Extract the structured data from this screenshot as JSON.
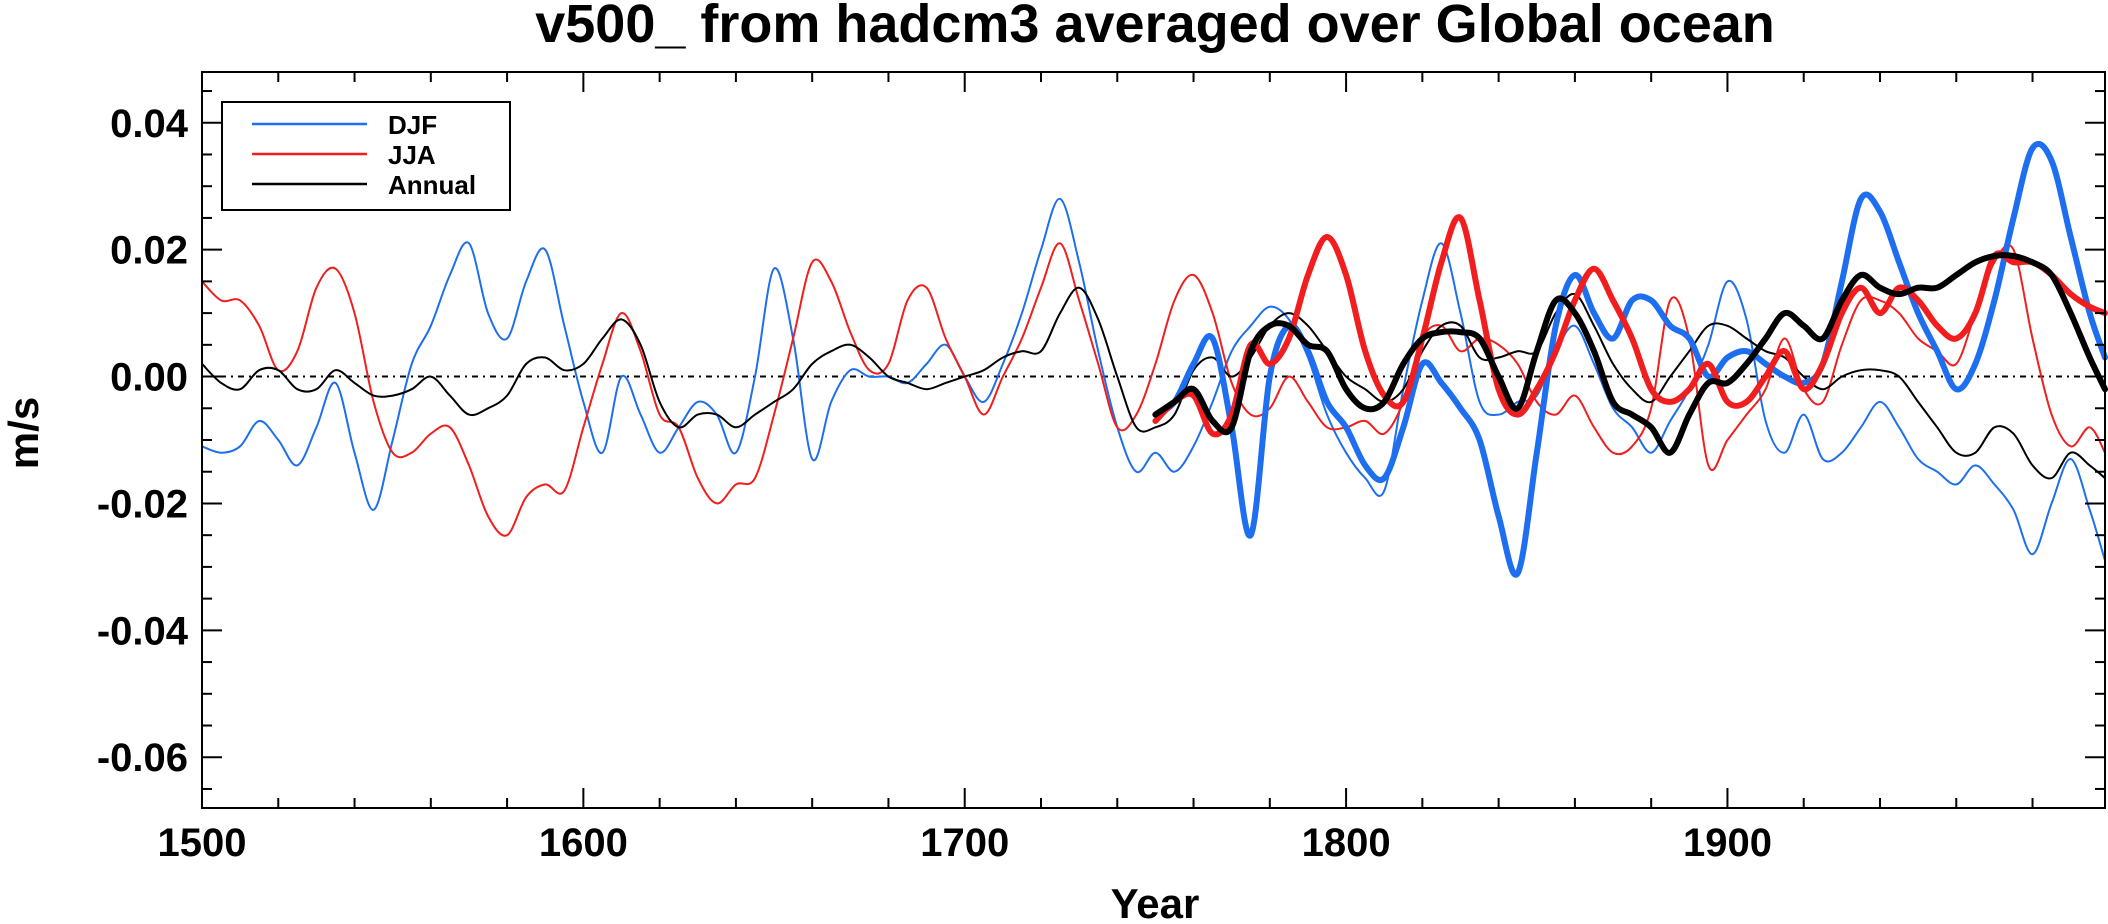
{
  "chart_data": {
    "type": "line",
    "title": "v500_ from hadcm3 averaged over Global ocean",
    "xlabel": "Year",
    "ylabel": "m/s",
    "xlim": [
      1500,
      1999
    ],
    "ylim": [
      -0.068,
      0.048
    ],
    "xticks": [
      1500,
      1600,
      1700,
      1800,
      1900
    ],
    "xtick_labels": [
      "1500",
      "1600",
      "1700",
      "1800",
      "1900"
    ],
    "yticks": [
      -0.06,
      -0.04,
      -0.02,
      0.0,
      0.02,
      0.04
    ],
    "ytick_labels": [
      "-0.06",
      "-0.04",
      "-0.02",
      "0.00",
      "0.02",
      "0.04"
    ],
    "zero_line": true,
    "legend_position": "top-left",
    "legend": [
      {
        "label": "DJF",
        "color": "#1E6EF0"
      },
      {
        "label": "JJA",
        "color": "#F01E1E"
      },
      {
        "label": "Annual",
        "color": "#000000"
      }
    ],
    "series": [
      {
        "name": "DJF",
        "color": "#1E6EF0",
        "width": "thin",
        "x": [
          1500,
          1505,
          1510,
          1515,
          1520,
          1525,
          1530,
          1535,
          1540,
          1545,
          1550,
          1555,
          1560,
          1565,
          1570,
          1575,
          1580,
          1585,
          1590,
          1595,
          1600,
          1605,
          1610,
          1615,
          1620,
          1625,
          1630,
          1635,
          1640,
          1645,
          1650,
          1655,
          1660,
          1665,
          1670,
          1675,
          1680,
          1685,
          1690,
          1695,
          1700,
          1705,
          1710,
          1715,
          1720,
          1725,
          1730,
          1735,
          1740,
          1745,
          1750,
          1755,
          1760,
          1765,
          1770,
          1775,
          1780,
          1785,
          1790,
          1795,
          1800,
          1805,
          1810,
          1815,
          1820,
          1825,
          1830,
          1835,
          1840,
          1845,
          1850,
          1855,
          1860,
          1865,
          1870,
          1875,
          1880,
          1885,
          1890,
          1895,
          1900,
          1905,
          1910,
          1915,
          1920,
          1925,
          1930,
          1935,
          1940,
          1945,
          1950,
          1955,
          1960,
          1965,
          1970,
          1975,
          1980,
          1985,
          1990,
          1995,
          1999
        ],
        "y": [
          -0.011,
          -0.012,
          -0.011,
          -0.007,
          -0.01,
          -0.014,
          -0.008,
          -0.001,
          -0.012,
          -0.021,
          -0.01,
          0.002,
          0.008,
          0.016,
          0.021,
          0.01,
          0.006,
          0.015,
          0.02,
          0.008,
          -0.004,
          -0.012,
          0.0,
          -0.006,
          -0.012,
          -0.008,
          -0.004,
          -0.006,
          -0.012,
          0.0,
          0.017,
          0.006,
          -0.013,
          -0.004,
          0.001,
          0.0,
          0.0,
          -0.001,
          0.002,
          0.005,
          0.0,
          -0.004,
          0.002,
          0.01,
          0.02,
          0.028,
          0.018,
          0.004,
          -0.008,
          -0.015,
          -0.012,
          -0.015,
          -0.011,
          -0.004,
          0.004,
          0.008,
          0.011,
          0.009,
          0.003,
          -0.006,
          -0.012,
          -0.016,
          -0.018,
          -0.002,
          0.012,
          0.021,
          0.01,
          -0.004,
          -0.006,
          -0.004,
          -0.003,
          0.004,
          0.008,
          0.002,
          -0.005,
          -0.008,
          -0.012,
          -0.007,
          -0.002,
          0.005,
          0.015,
          0.009,
          -0.007,
          -0.012,
          -0.006,
          -0.013,
          -0.012,
          -0.008,
          -0.004,
          -0.008,
          -0.013,
          -0.015,
          -0.017,
          -0.014,
          -0.017,
          -0.021,
          -0.028,
          -0.02,
          -0.013,
          -0.021,
          -0.029
        ]
      },
      {
        "name": "JJA",
        "color": "#F01E1E",
        "width": "thin",
        "x": [
          1500,
          1505,
          1510,
          1515,
          1520,
          1525,
          1530,
          1535,
          1540,
          1545,
          1550,
          1555,
          1560,
          1565,
          1570,
          1575,
          1580,
          1585,
          1590,
          1595,
          1600,
          1605,
          1610,
          1615,
          1620,
          1625,
          1630,
          1635,
          1640,
          1645,
          1650,
          1655,
          1660,
          1665,
          1670,
          1675,
          1680,
          1685,
          1690,
          1695,
          1700,
          1705,
          1710,
          1715,
          1720,
          1725,
          1730,
          1735,
          1740,
          1745,
          1750,
          1755,
          1760,
          1765,
          1770,
          1775,
          1780,
          1785,
          1790,
          1795,
          1800,
          1805,
          1810,
          1815,
          1820,
          1825,
          1830,
          1835,
          1840,
          1845,
          1850,
          1855,
          1860,
          1865,
          1870,
          1875,
          1880,
          1885,
          1890,
          1895,
          1900,
          1905,
          1910,
          1915,
          1920,
          1925,
          1930,
          1935,
          1940,
          1945,
          1950,
          1955,
          1960,
          1965,
          1970,
          1975,
          1980,
          1985,
          1990,
          1995,
          1999
        ],
        "y": [
          0.015,
          0.012,
          0.012,
          0.008,
          0.001,
          0.004,
          0.014,
          0.017,
          0.01,
          -0.004,
          -0.012,
          -0.012,
          -0.009,
          -0.008,
          -0.014,
          -0.022,
          -0.025,
          -0.019,
          -0.017,
          -0.018,
          -0.008,
          0.002,
          0.01,
          0.004,
          -0.006,
          -0.008,
          -0.016,
          -0.02,
          -0.017,
          -0.016,
          -0.006,
          0.006,
          0.018,
          0.015,
          0.007,
          0.001,
          0.002,
          0.012,
          0.014,
          0.006,
          0.0,
          -0.006,
          0.0,
          0.006,
          0.014,
          0.021,
          0.012,
          0.002,
          -0.008,
          -0.006,
          0.002,
          0.012,
          0.016,
          0.01,
          -0.001,
          -0.006,
          -0.005,
          0.0,
          -0.004,
          -0.008,
          -0.008,
          -0.007,
          -0.009,
          -0.004,
          0.006,
          0.008,
          0.004,
          0.006,
          0.005,
          0.002,
          -0.004,
          -0.006,
          -0.003,
          -0.008,
          -0.012,
          -0.011,
          -0.005,
          0.012,
          0.006,
          -0.014,
          -0.01,
          -0.006,
          -0.002,
          0.006,
          -0.002,
          -0.004,
          0.005,
          0.012,
          0.012,
          0.01,
          0.006,
          0.004,
          0.002,
          0.01,
          0.018,
          0.02,
          0.006,
          -0.006,
          -0.011,
          -0.008,
          -0.012
        ]
      },
      {
        "name": "Annual",
        "color": "#000000",
        "width": "thin",
        "x": [
          1500,
          1505,
          1510,
          1515,
          1520,
          1525,
          1530,
          1535,
          1540,
          1545,
          1550,
          1555,
          1560,
          1565,
          1570,
          1575,
          1580,
          1585,
          1590,
          1595,
          1600,
          1605,
          1610,
          1615,
          1620,
          1625,
          1630,
          1635,
          1640,
          1645,
          1650,
          1655,
          1660,
          1665,
          1670,
          1675,
          1680,
          1685,
          1690,
          1695,
          1700,
          1705,
          1710,
          1715,
          1720,
          1725,
          1730,
          1735,
          1740,
          1745,
          1750,
          1755,
          1760,
          1765,
          1770,
          1775,
          1780,
          1785,
          1790,
          1795,
          1800,
          1805,
          1810,
          1815,
          1820,
          1825,
          1830,
          1835,
          1840,
          1845,
          1850,
          1855,
          1860,
          1865,
          1870,
          1875,
          1880,
          1885,
          1890,
          1895,
          1900,
          1905,
          1910,
          1915,
          1920,
          1925,
          1930,
          1935,
          1940,
          1945,
          1950,
          1955,
          1960,
          1965,
          1970,
          1975,
          1980,
          1985,
          1990,
          1995,
          1999
        ],
        "y": [
          0.002,
          -0.001,
          -0.002,
          0.001,
          0.001,
          -0.002,
          -0.002,
          0.001,
          -0.001,
          -0.003,
          -0.003,
          -0.002,
          0.0,
          -0.003,
          -0.006,
          -0.005,
          -0.003,
          0.002,
          0.003,
          0.001,
          0.002,
          0.006,
          0.009,
          0.005,
          -0.004,
          -0.008,
          -0.006,
          -0.006,
          -0.008,
          -0.006,
          -0.004,
          -0.002,
          0.002,
          0.004,
          0.005,
          0.003,
          0.0,
          -0.001,
          -0.002,
          -0.001,
          0.0,
          0.001,
          0.003,
          0.004,
          0.004,
          0.01,
          0.014,
          0.009,
          0.0,
          -0.008,
          -0.008,
          -0.006,
          0.001,
          0.003,
          0.0,
          0.003,
          0.008,
          0.01,
          0.008,
          0.004,
          0.0,
          -0.002,
          -0.004,
          -0.002,
          0.004,
          0.008,
          0.008,
          0.003,
          0.003,
          0.004,
          0.004,
          0.01,
          0.013,
          0.008,
          0.002,
          -0.002,
          -0.004,
          0.0,
          0.004,
          0.008,
          0.008,
          0.006,
          0.004,
          0.003,
          0.0,
          -0.002,
          0.0,
          0.001,
          0.001,
          0.0,
          -0.004,
          -0.008,
          -0.012,
          -0.012,
          -0.008,
          -0.009,
          -0.014,
          -0.016,
          -0.012,
          -0.014,
          -0.016
        ]
      },
      {
        "name": "DJF",
        "color": "#1E6EF0",
        "width": "thick",
        "x": [
          1750,
          1755,
          1760,
          1765,
          1770,
          1775,
          1780,
          1785,
          1790,
          1795,
          1800,
          1805,
          1810,
          1815,
          1820,
          1825,
          1830,
          1835,
          1840,
          1845,
          1850,
          1855,
          1860,
          1865,
          1870,
          1875,
          1880,
          1885,
          1890,
          1895,
          1900,
          1905,
          1910,
          1915,
          1920,
          1925,
          1930,
          1935,
          1940,
          1945,
          1950,
          1955,
          1960,
          1965,
          1970,
          1975,
          1980,
          1985,
          1990,
          1995,
          1999
        ],
        "y": [
          -0.006,
          -0.004,
          0.002,
          0.006,
          -0.008,
          -0.025,
          0.0,
          0.008,
          0.004,
          -0.004,
          -0.008,
          -0.014,
          -0.016,
          -0.008,
          0.002,
          -0.001,
          -0.005,
          -0.01,
          -0.022,
          -0.031,
          -0.012,
          0.008,
          0.016,
          0.01,
          0.006,
          0.012,
          0.012,
          0.008,
          0.006,
          0.0,
          0.003,
          0.004,
          0.002,
          0.0,
          -0.001,
          0.002,
          0.015,
          0.028,
          0.026,
          0.018,
          0.01,
          0.004,
          -0.002,
          0.002,
          0.012,
          0.025,
          0.036,
          0.034,
          0.022,
          0.01,
          0.003
        ]
      },
      {
        "name": "JJA",
        "color": "#F01E1E",
        "width": "thick",
        "x": [
          1750,
          1755,
          1760,
          1765,
          1770,
          1775,
          1780,
          1785,
          1790,
          1795,
          1800,
          1805,
          1810,
          1815,
          1820,
          1825,
          1830,
          1835,
          1840,
          1845,
          1850,
          1855,
          1860,
          1865,
          1870,
          1875,
          1880,
          1885,
          1890,
          1895,
          1900,
          1905,
          1910,
          1915,
          1920,
          1925,
          1930,
          1935,
          1940,
          1945,
          1950,
          1955,
          1960,
          1965,
          1970,
          1975,
          1980,
          1985,
          1990,
          1995,
          1999
        ],
        "y": [
          -0.007,
          -0.004,
          -0.003,
          -0.009,
          -0.006,
          0.005,
          0.002,
          0.006,
          0.016,
          0.022,
          0.016,
          0.004,
          -0.003,
          -0.004,
          0.006,
          0.018,
          0.025,
          0.012,
          -0.002,
          -0.006,
          -0.002,
          0.004,
          0.012,
          0.017,
          0.012,
          0.006,
          -0.002,
          -0.004,
          -0.002,
          0.002,
          -0.004,
          -0.004,
          0.0,
          0.004,
          -0.002,
          0.002,
          0.01,
          0.014,
          0.01,
          0.014,
          0.012,
          0.008,
          0.006,
          0.01,
          0.019,
          0.018,
          0.018,
          0.016,
          0.013,
          0.011,
          0.01
        ]
      },
      {
        "name": "Annual",
        "color": "#000000",
        "width": "thick",
        "x": [
          1750,
          1755,
          1760,
          1765,
          1770,
          1775,
          1780,
          1785,
          1790,
          1795,
          1800,
          1805,
          1810,
          1815,
          1820,
          1825,
          1830,
          1835,
          1840,
          1845,
          1850,
          1855,
          1860,
          1865,
          1870,
          1875,
          1880,
          1885,
          1890,
          1895,
          1900,
          1905,
          1910,
          1915,
          1920,
          1925,
          1930,
          1935,
          1940,
          1945,
          1950,
          1955,
          1960,
          1965,
          1970,
          1975,
          1980,
          1985,
          1990,
          1995,
          1999
        ],
        "y": [
          -0.006,
          -0.004,
          -0.002,
          -0.007,
          -0.008,
          0.004,
          0.008,
          0.008,
          0.005,
          0.004,
          -0.002,
          -0.005,
          -0.004,
          0.002,
          0.006,
          0.007,
          0.007,
          0.006,
          0.0,
          -0.005,
          0.004,
          0.012,
          0.01,
          0.004,
          -0.004,
          -0.006,
          -0.008,
          -0.012,
          -0.006,
          -0.001,
          -0.001,
          0.002,
          0.006,
          0.01,
          0.008,
          0.006,
          0.012,
          0.016,
          0.014,
          0.013,
          0.014,
          0.014,
          0.016,
          0.018,
          0.019,
          0.019,
          0.018,
          0.016,
          0.01,
          0.003,
          -0.002
        ]
      }
    ]
  }
}
